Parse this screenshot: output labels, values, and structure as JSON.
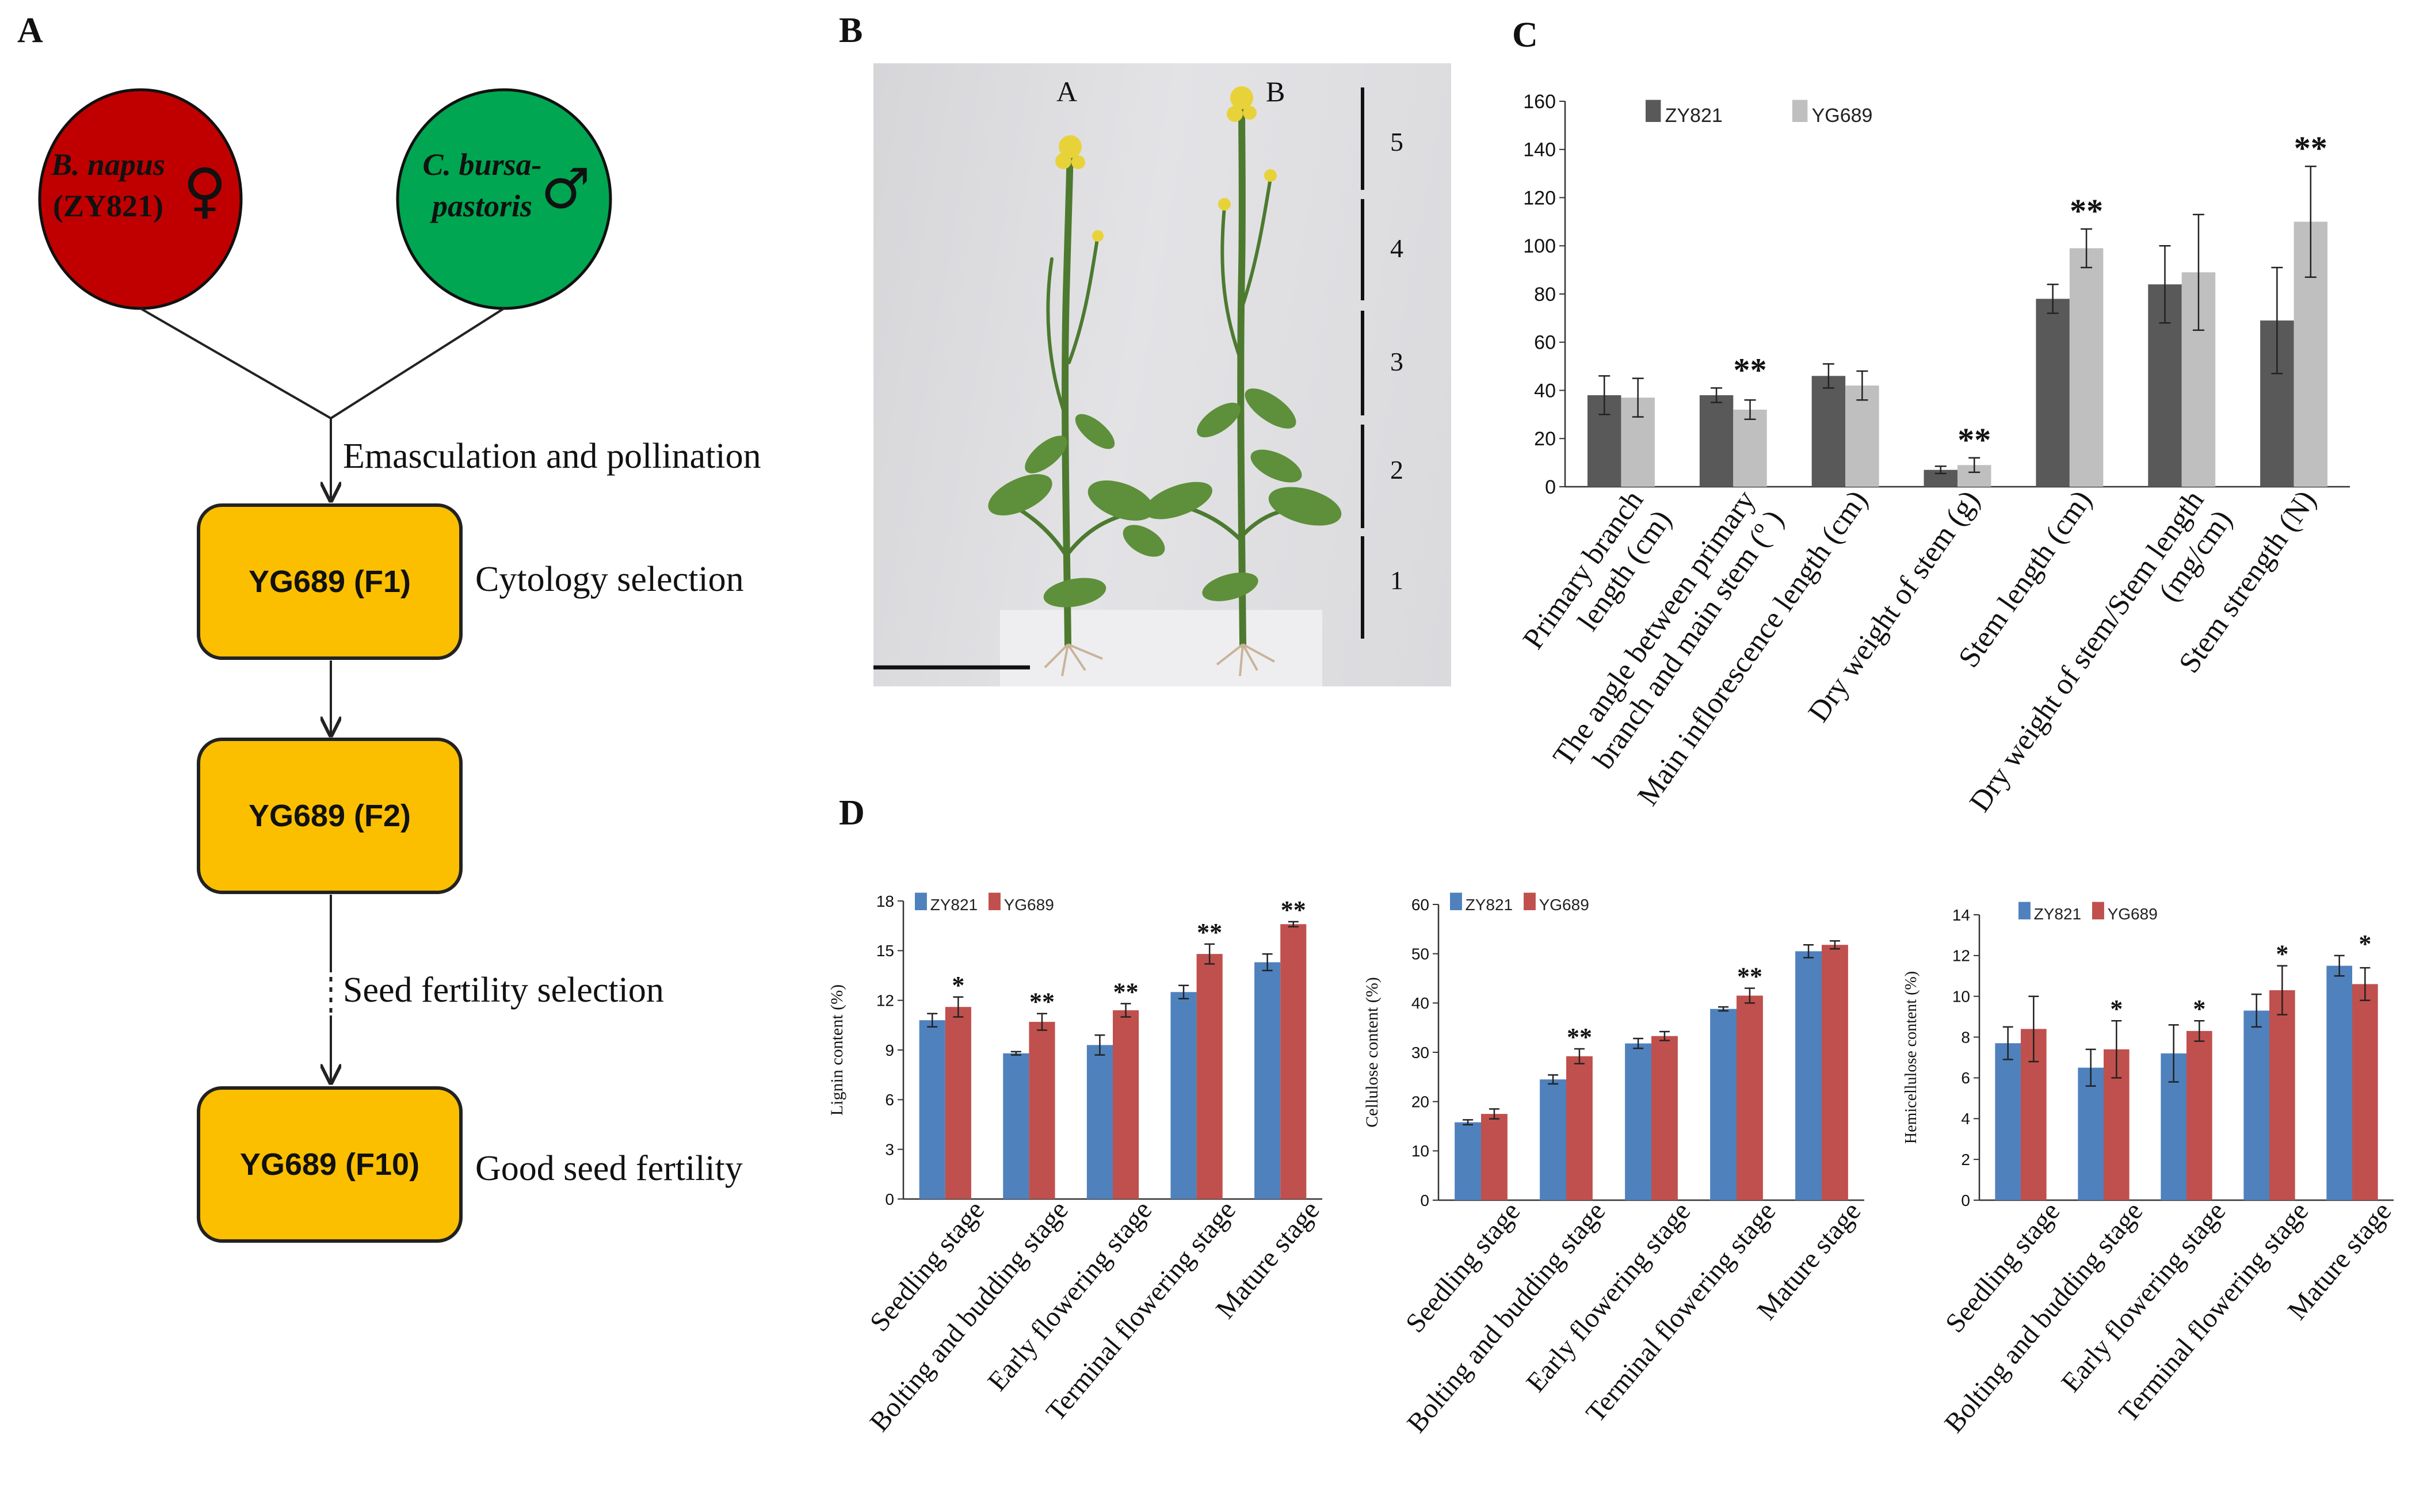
{
  "panel_a": {
    "label": "A",
    "parent_female": {
      "line1": "B. napus",
      "line2": "(ZY821)",
      "symbol": "♀",
      "color": "#C00000"
    },
    "parent_male": {
      "line1": "C. bursa-",
      "line2": "pastoris",
      "symbol": "♂",
      "color": "#00A651"
    },
    "step1_text": "Emasculation and pollination",
    "box1": "YG689 (F1)",
    "box1_note": "Cytology selection",
    "box2": "YG689 (F2)",
    "step2_text": "Seed fertility selection",
    "box3": "YG689 (F10)",
    "box3_note": "Good seed fertility",
    "box_color": "#FBBF00"
  },
  "panel_b": {
    "label": "B",
    "plant_a": "A",
    "plant_b": "B",
    "scale_marks": [
      "5",
      "4",
      "3",
      "2",
      "1"
    ]
  },
  "panel_d_label": "D",
  "colors": {
    "zy821_gray": "#595959",
    "yg689_gray": "#BFBFBF",
    "zy821_blue": "#4F81BD",
    "yg689_red": "#C0504D"
  },
  "chart_data": [
    {
      "id": "C",
      "label": "C",
      "type": "bar",
      "categories": [
        "Primary branch length (cm)",
        "The angle between primary branch and main stem (º)",
        "Main inflorescence length (cm)",
        "Dry weight of stem (g)",
        "Stem length (cm)",
        "Dry weight of stem/Stem length (mg/cm)",
        "Stem strength (N)"
      ],
      "tick_lines": [
        [
          "Primary branch",
          "length (cm)"
        ],
        [
          "The angle between primary",
          "branch and main stem (º )"
        ],
        [
          "Main inflorescence length (cm)"
        ],
        [
          "Dry weight of stem (g)"
        ],
        [
          "Stem length (cm)"
        ],
        [
          "Dry weight of stem/Stem length",
          "(mg/cm)"
        ],
        [
          "Stem strength (N)"
        ]
      ],
      "series": [
        {
          "name": "ZY821",
          "values": [
            38,
            38,
            46,
            7,
            78,
            84,
            69
          ],
          "errors": [
            8,
            3,
            5,
            1.5,
            6,
            16,
            22
          ]
        },
        {
          "name": "YG689",
          "values": [
            37,
            32,
            42,
            9,
            99,
            89,
            110
          ],
          "errors": [
            8,
            4,
            6,
            3,
            8,
            24,
            23
          ]
        }
      ],
      "significance": [
        "",
        "**",
        "",
        "**",
        "**",
        "",
        "**"
      ],
      "ylim": [
        0,
        160
      ],
      "yticks": [
        0,
        20,
        40,
        60,
        80,
        100,
        120,
        140,
        160
      ],
      "ylabel": ""
    },
    {
      "id": "D1",
      "type": "bar",
      "categories": [
        "Seedling stage",
        "Bolting and budding stage",
        "Early flowering stage",
        "Terminal flowering stage",
        "Mature stage"
      ],
      "series": [
        {
          "name": "ZY821",
          "values": [
            10.8,
            8.8,
            9.3,
            12.5,
            14.3
          ],
          "errors": [
            0.4,
            0.1,
            0.6,
            0.4,
            0.5
          ]
        },
        {
          "name": "YG689",
          "values": [
            11.6,
            10.7,
            11.4,
            14.8,
            16.6
          ],
          "errors": [
            0.6,
            0.5,
            0.4,
            0.6,
            0.15
          ]
        }
      ],
      "significance": [
        "*",
        "**",
        "**",
        "**",
        "**"
      ],
      "ylim": [
        0,
        18
      ],
      "yticks": [
        0,
        3,
        6,
        9,
        12,
        15,
        18
      ],
      "ylabel": "Lignin content (%)"
    },
    {
      "id": "D2",
      "type": "bar",
      "categories": [
        "Seedling stage",
        "Bolting and budding stage",
        "Early flowering stage",
        "Terminal flowering stage",
        "Mature stage"
      ],
      "series": [
        {
          "name": "ZY821",
          "values": [
            15.8,
            24.5,
            31.8,
            38.8,
            50.5
          ],
          "errors": [
            0.5,
            0.9,
            1.0,
            0.4,
            1.3
          ]
        },
        {
          "name": "YG689",
          "values": [
            17.5,
            29.2,
            33.3,
            41.5,
            51.8
          ],
          "errors": [
            1.0,
            1.5,
            0.9,
            1.5,
            0.8
          ]
        }
      ],
      "significance": [
        "",
        "**",
        "",
        "**",
        ""
      ],
      "ylim": [
        0,
        60
      ],
      "yticks": [
        0,
        10,
        20,
        30,
        40,
        50,
        60
      ],
      "ylabel": "Cellulose content (%)"
    },
    {
      "id": "D3",
      "type": "bar",
      "categories": [
        "Seedling stage",
        "Bolting and budding stage",
        "Early flowering stage",
        "Terminal flowering stage",
        "Mature stage"
      ],
      "series": [
        {
          "name": "ZY821",
          "values": [
            7.7,
            6.5,
            7.2,
            9.3,
            11.5
          ],
          "errors": [
            0.8,
            0.9,
            1.4,
            0.8,
            0.5
          ]
        },
        {
          "name": "YG689",
          "values": [
            8.4,
            7.4,
            8.3,
            10.3,
            10.6
          ],
          "errors": [
            1.6,
            1.4,
            0.5,
            1.2,
            0.8
          ]
        }
      ],
      "significance": [
        "",
        "*",
        "*",
        "*",
        "*"
      ],
      "ylim": [
        0,
        14
      ],
      "yticks": [
        0,
        2,
        4,
        6,
        8,
        10,
        12,
        14
      ],
      "ylabel": "Hemicellulose content (%)"
    }
  ]
}
